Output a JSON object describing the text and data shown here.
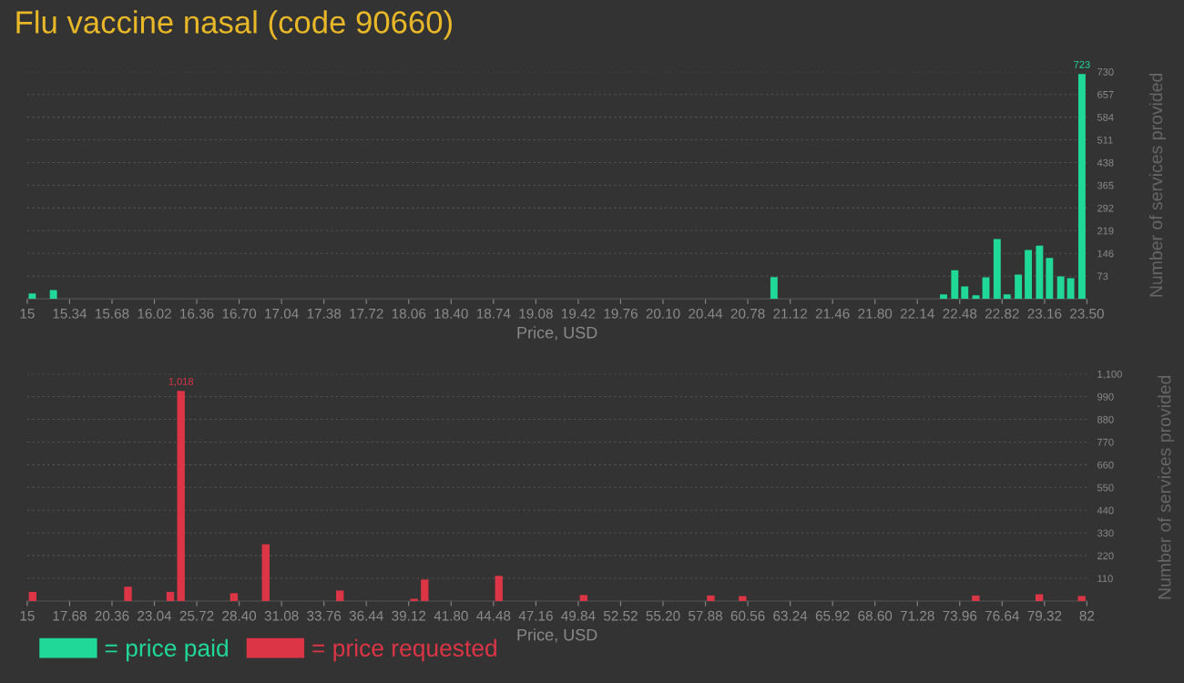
{
  "chart_data": [
    {
      "type": "bar",
      "title": "Flu vaccine nasal (code 90660)",
      "xlabel": "Price, USD",
      "ylabel": "Number of services provided",
      "x": [
        15.04,
        15.21,
        20.99,
        22.35,
        22.44,
        22.52,
        22.61,
        22.69,
        22.78,
        22.86,
        22.95,
        23.03,
        23.12,
        23.2,
        23.29,
        23.37,
        23.46
      ],
      "series": [
        {
          "name": "= price paid",
          "color": "#20d998",
          "values": [
            17,
            28,
            70,
            14,
            92,
            40,
            11,
            69,
            192,
            14,
            78,
            157,
            171,
            131,
            72,
            66,
            723
          ],
          "value_labels": [
            null,
            null,
            null,
            null,
            null,
            null,
            null,
            null,
            null,
            null,
            null,
            null,
            null,
            null,
            null,
            null,
            "723"
          ]
        }
      ],
      "xlim": [
        15,
        23.5
      ],
      "xticks": [
        15,
        15.34,
        15.68,
        16.02,
        16.36,
        {
          "value": 16.7,
          "label": "16.70"
        },
        17.04,
        17.38,
        17.72,
        18.06,
        {
          "value": 18.4,
          "label": "18.40"
        },
        18.74,
        19.08,
        19.42,
        19.76,
        {
          "value": 20.1,
          "label": "20.10"
        },
        20.44,
        20.78,
        21.12,
        21.46,
        {
          "value": 21.8,
          "label": "21.80"
        },
        22.14,
        22.48,
        22.82,
        23.16,
        {
          "value": 23.5,
          "label": "23.50"
        }
      ],
      "ylim": [
        0,
        730
      ],
      "yticks": [
        73,
        146,
        219,
        292,
        365,
        438,
        511,
        584,
        657,
        730
      ],
      "grid": "y",
      "legend": "bottom"
    },
    {
      "type": "bar",
      "xlabel": "Price, USD",
      "ylabel": "Number of services provided",
      "x": [
        15.34,
        21.37,
        24.05,
        24.72,
        28.07,
        30.08,
        34.77,
        39.46,
        40.13,
        44.82,
        50.18,
        58.22,
        60.23,
        74.97,
        78.99,
        81.67
      ],
      "series": [
        {
          "name": "= price requested",
          "color": "#dc3545",
          "values": [
            44,
            69,
            44,
            1018,
            38,
            275,
            51,
            11,
            104,
            122,
            29,
            27,
            24,
            27,
            33,
            24
          ],
          "value_labels": [
            null,
            null,
            null,
            "1,018",
            null,
            null,
            null,
            null,
            null,
            null,
            null,
            null,
            null,
            null,
            null,
            null
          ]
        }
      ],
      "xlim": [
        15,
        82
      ],
      "xticks": [
        15,
        17.68,
        20.36,
        23.04,
        25.72,
        {
          "value": 28.4,
          "label": "28.40"
        },
        31.08,
        33.76,
        36.44,
        39.12,
        {
          "value": 41.8,
          "label": "41.80"
        },
        44.48,
        47.16,
        49.84,
        52.52,
        {
          "value": 55.2,
          "label": "55.20"
        },
        57.88,
        60.56,
        63.24,
        65.92,
        {
          "value": 68.6,
          "label": "68.60"
        },
        71.28,
        73.96,
        76.64,
        79.32,
        82
      ],
      "ylim": [
        0,
        1100
      ],
      "yticks": [
        110,
        220,
        330,
        440,
        550,
        660,
        770,
        880,
        990,
        {
          "value": 1100,
          "label": "1,100"
        }
      ],
      "grid": "y",
      "legend": "bottom"
    }
  ]
}
